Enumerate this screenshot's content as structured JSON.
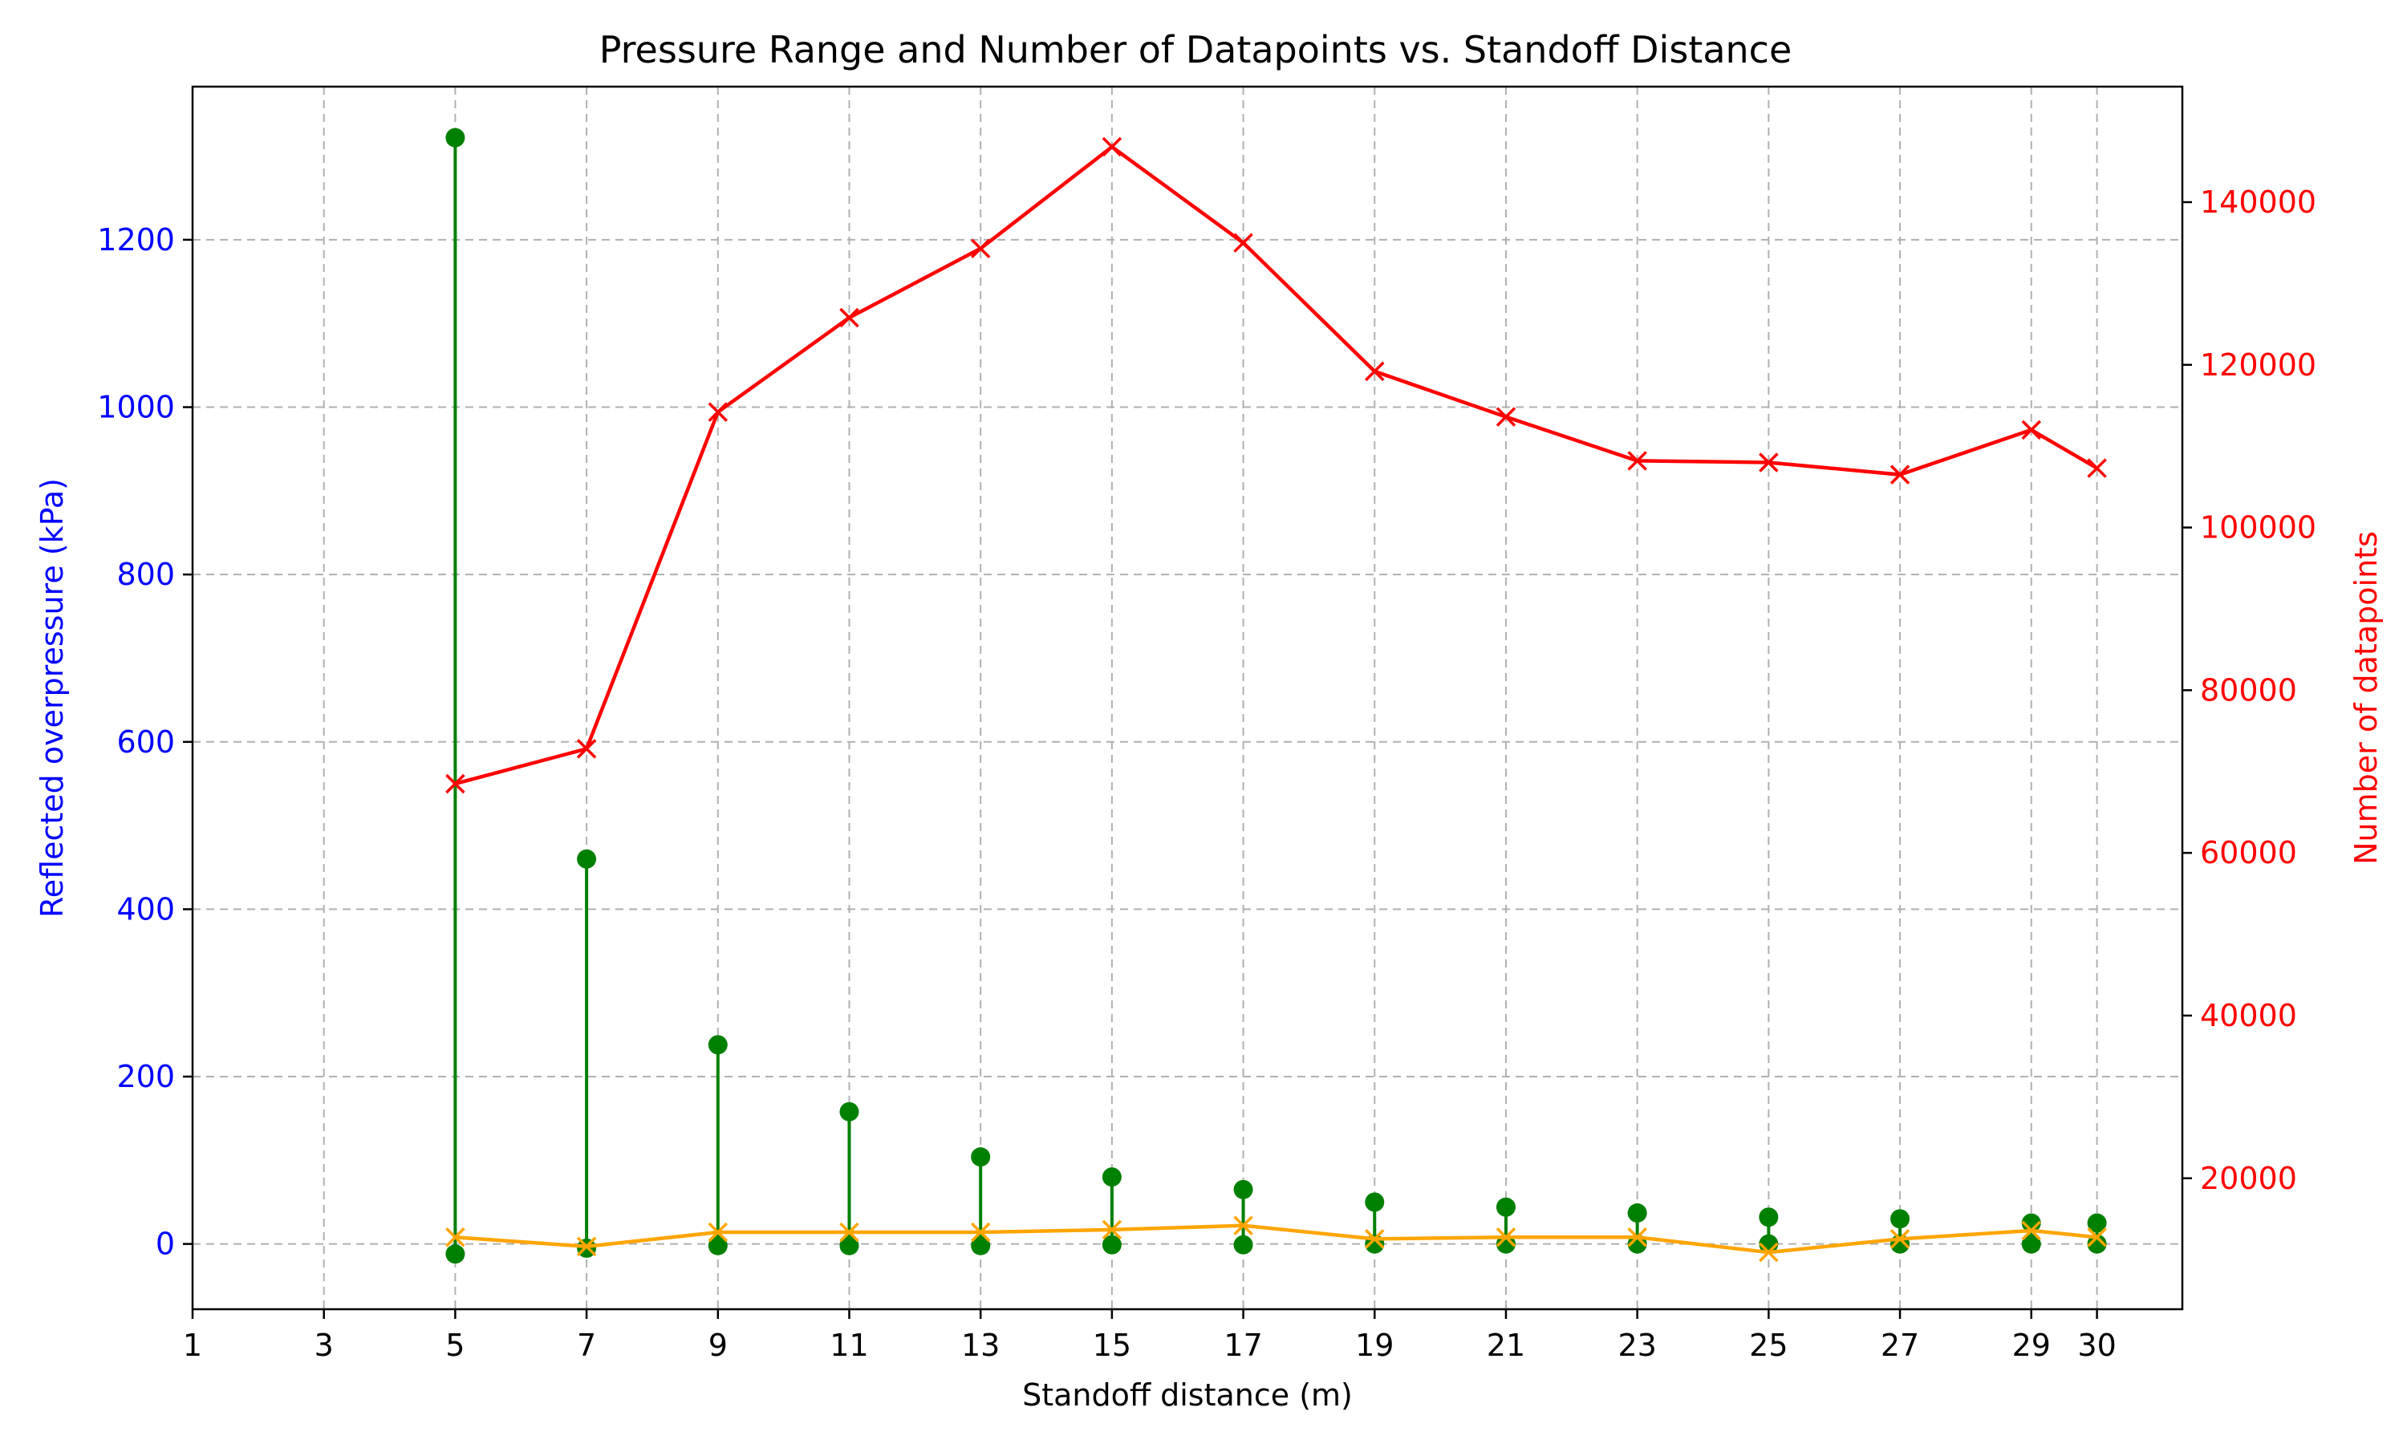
{
  "chart_data": {
    "type": "line",
    "title": "Pressure Range and Number of Datapoints vs. Standoff Distance",
    "xlabel": "Standoff distance (m)",
    "ylabel": "Reflected overpressure (kPa)",
    "y2label": "Number of datapoints",
    "xlim": [
      1,
      31.3
    ],
    "ylim": [
      -78,
      1383
    ],
    "y2lim": [
      3900,
      154200
    ],
    "xticks": [
      1,
      3,
      5,
      7,
      9,
      11,
      13,
      15,
      17,
      19,
      21,
      23,
      25,
      27,
      29,
      30
    ],
    "yticks": [
      0,
      200,
      400,
      600,
      800,
      1000,
      1200
    ],
    "y2ticks": [
      20000,
      40000,
      60000,
      80000,
      100000,
      120000,
      140000
    ],
    "grid": true,
    "x": [
      5,
      7,
      9,
      11,
      13,
      15,
      17,
      19,
      21,
      23,
      25,
      27,
      29,
      30
    ],
    "series": [
      {
        "kind": "range",
        "axis": "left",
        "min": [
          -12,
          -5,
          -2,
          -2,
          -2,
          -1,
          -1,
          0,
          0,
          0,
          0,
          0,
          0,
          0
        ],
        "max": [
          1322,
          460,
          238,
          158,
          104,
          80,
          65,
          50,
          44,
          37,
          32,
          30,
          25,
          25
        ]
      },
      {
        "kind": "line",
        "axis": "left",
        "values": [
          8,
          -3,
          14,
          14,
          14,
          17,
          22,
          6,
          8,
          8,
          -10,
          6,
          16,
          8
        ]
      },
      {
        "kind": "line",
        "axis": "right",
        "values": [
          68500,
          72800,
          114200,
          125800,
          134300,
          146800,
          135000,
          119200,
          113600,
          108200,
          108000,
          106500,
          112000,
          107300
        ]
      }
    ],
    "colors": {
      "range": "#008000",
      "mean": "#ffa500",
      "count": "#ff0000",
      "left_axis": "#0000ff",
      "right_axis": "#ff0000",
      "grid": "#b0b0b0"
    }
  }
}
